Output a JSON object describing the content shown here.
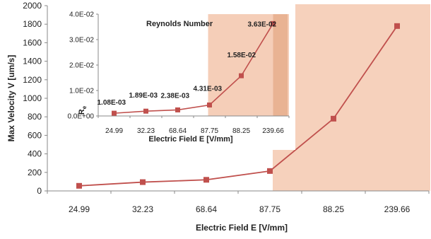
{
  "colors": {
    "series": "#c0504d",
    "marker": "#c0504d",
    "highlight": "#f4c9b0",
    "inset_highlight": "#e8b08f",
    "axis": "#888888",
    "text": "#222222"
  },
  "chart_data": [
    {
      "type": "line",
      "categories": [
        "24.99",
        "32.23",
        "68.64",
        "87.75",
        "88.25",
        "239.66"
      ],
      "series": [
        {
          "values": [
            55,
            95,
            120,
            215,
            780,
            1780
          ]
        }
      ],
      "xlabel": "Electric Field E [V/mm]",
      "ylabel": "Max Velocity V [um/s]",
      "ylim": [
        0,
        2000
      ],
      "yticks": [
        "0",
        "200",
        "400",
        "600",
        "800",
        "1000",
        "1200",
        "1400",
        "1600",
        "1800",
        "2000"
      ],
      "grid": false,
      "highlight_region": {
        "from_category": "87.75",
        "to_category": "239.66"
      }
    },
    {
      "type": "line",
      "title": "Reynolds Number",
      "categories": [
        "24.99",
        "32.23",
        "68.64",
        "87.75",
        "88.25",
        "239.66"
      ],
      "series": [
        {
          "values": [
            0.00108,
            0.00189,
            0.00238,
            0.00431,
            0.0158,
            0.0363
          ]
        }
      ],
      "data_labels": [
        "1.08E-03",
        "1.89E-03",
        "2.38E-03",
        "4.31E-03",
        "1.58E-02",
        "3.63E-02"
      ],
      "xlabel": "Electric Field E [V/mm]",
      "ylabel": "Re",
      "ylim": [
        0,
        0.04
      ],
      "yticks": [
        "0.0E+00",
        "1.0E-02",
        "2.0E-02",
        "3.0E-02",
        "4.0E-02"
      ],
      "grid": false,
      "highlight_region": {
        "from_category": "87.75",
        "to_category": "239.66"
      }
    }
  ]
}
